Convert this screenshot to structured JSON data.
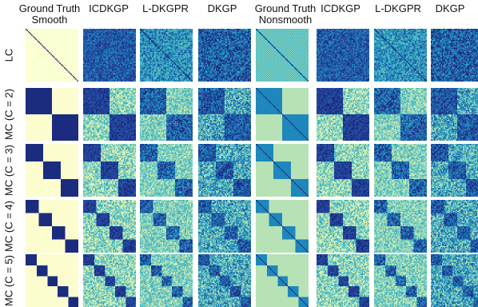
{
  "columns": [
    {
      "line1": "Ground Truth",
      "line2": "Smooth"
    },
    {
      "line1": "",
      "line2": "ICDKGP"
    },
    {
      "line1": "",
      "line2": "L-DKGPR"
    },
    {
      "line1": "",
      "line2": "DKGP"
    },
    {
      "line1": "Ground Truth",
      "line2": "Nonsmooth"
    },
    {
      "line1": "",
      "line2": "ICDKGP"
    },
    {
      "line1": "",
      "line2": "L-DKGPR"
    },
    {
      "line1": "",
      "line2": "DKGP"
    }
  ],
  "rows": [
    "LC",
    "MC (C = 2)",
    "MC (C = 3)",
    "MC (C = 4)",
    "MC (C = 5)"
  ],
  "colormap": [
    "#ffffd9",
    "#edf8b1",
    "#c7e9b4",
    "#7fcdbb",
    "#41b6c4",
    "#1d91c0",
    "#225ea8",
    "#253494",
    "#081d58"
  ]
}
